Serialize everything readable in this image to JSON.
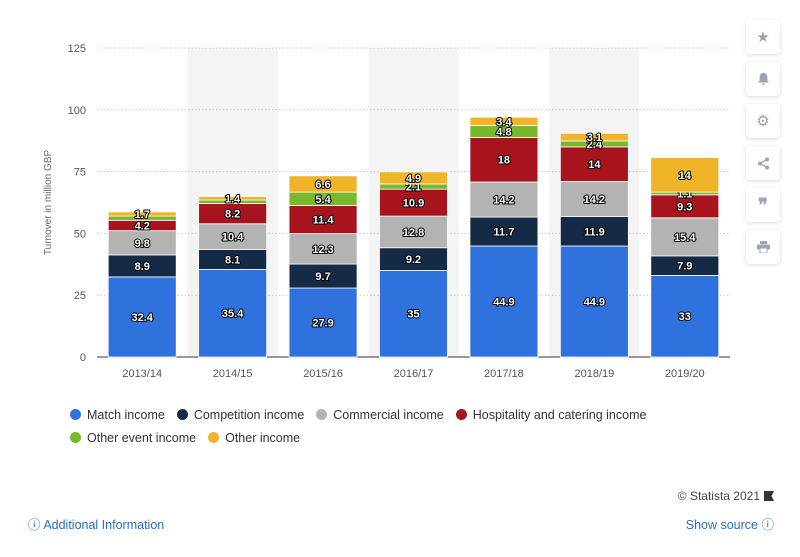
{
  "chart_data": {
    "type": "bar",
    "stacked": true,
    "categories": [
      "2013/14",
      "2014/15",
      "2015/16",
      "2016/17",
      "2017/18",
      "2018/19",
      "2019/20"
    ],
    "series": [
      {
        "name": "Match income",
        "color": "#2f72de",
        "values": [
          32.4,
          35.4,
          27.9,
          35,
          44.9,
          44.9,
          33
        ]
      },
      {
        "name": "Competition income",
        "color": "#142a45",
        "values": [
          8.9,
          8.1,
          9.7,
          9.2,
          11.7,
          11.9,
          7.9
        ]
      },
      {
        "name": "Commercial income",
        "color": "#b3b3b3",
        "values": [
          9.8,
          10.4,
          12.3,
          12.8,
          14.2,
          14.2,
          15.4
        ]
      },
      {
        "name": "Hospitality and catering income",
        "color": "#a8141d",
        "values": [
          4.2,
          8.2,
          11.4,
          10.9,
          18,
          14,
          9.3
        ]
      },
      {
        "name": "Other event income",
        "color": "#79b82b",
        "values": [
          1.7,
          1.4,
          5.4,
          2.1,
          4.8,
          2.4,
          1.1
        ]
      },
      {
        "name": "Other income",
        "color": "#f0b429",
        "values": [
          1.7,
          1.4,
          6.6,
          4.9,
          3.4,
          3.1,
          14
        ]
      }
    ],
    "data_labels": [
      [
        "32.4",
        "8.9",
        "9.8",
        "4.2",
        "",
        "1.7"
      ],
      [
        "35.4",
        "8.1",
        "10.4",
        "8.2",
        "",
        "1.4"
      ],
      [
        "27.9",
        "9.7",
        "12.3",
        "11.4",
        "5.4",
        "6.6"
      ],
      [
        "35",
        "9.2",
        "12.8",
        "10.9",
        "2.1",
        "4.9"
      ],
      [
        "44.9",
        "11.7",
        "14.2",
        "18",
        "4.8",
        "3.4"
      ],
      [
        "44.9",
        "11.9",
        "14.2",
        "14",
        "2.4",
        "3.1"
      ],
      [
        "33",
        "7.9",
        "15.4",
        "9.3",
        "1.1",
        "14"
      ]
    ],
    "ylabel": "Turnover in million GBP",
    "yticks": [
      0,
      25,
      50,
      75,
      100,
      125
    ],
    "ylim": [
      0,
      125
    ],
    "grid": true,
    "legend_position": "bottom-left"
  },
  "legend": {
    "row1": [
      "Match income",
      "Competition income",
      "Commercial income",
      "Hospitality and catering income"
    ],
    "row2": [
      "Other event income",
      "Other income"
    ]
  },
  "footer": {
    "credit": "© Statista 2021",
    "additional_info": "Additional Information",
    "show_source": "Show source"
  },
  "sidebar": {
    "icons": [
      "star-icon",
      "bell-icon",
      "gear-icon",
      "share-icon",
      "quote-icon",
      "print-icon"
    ]
  }
}
